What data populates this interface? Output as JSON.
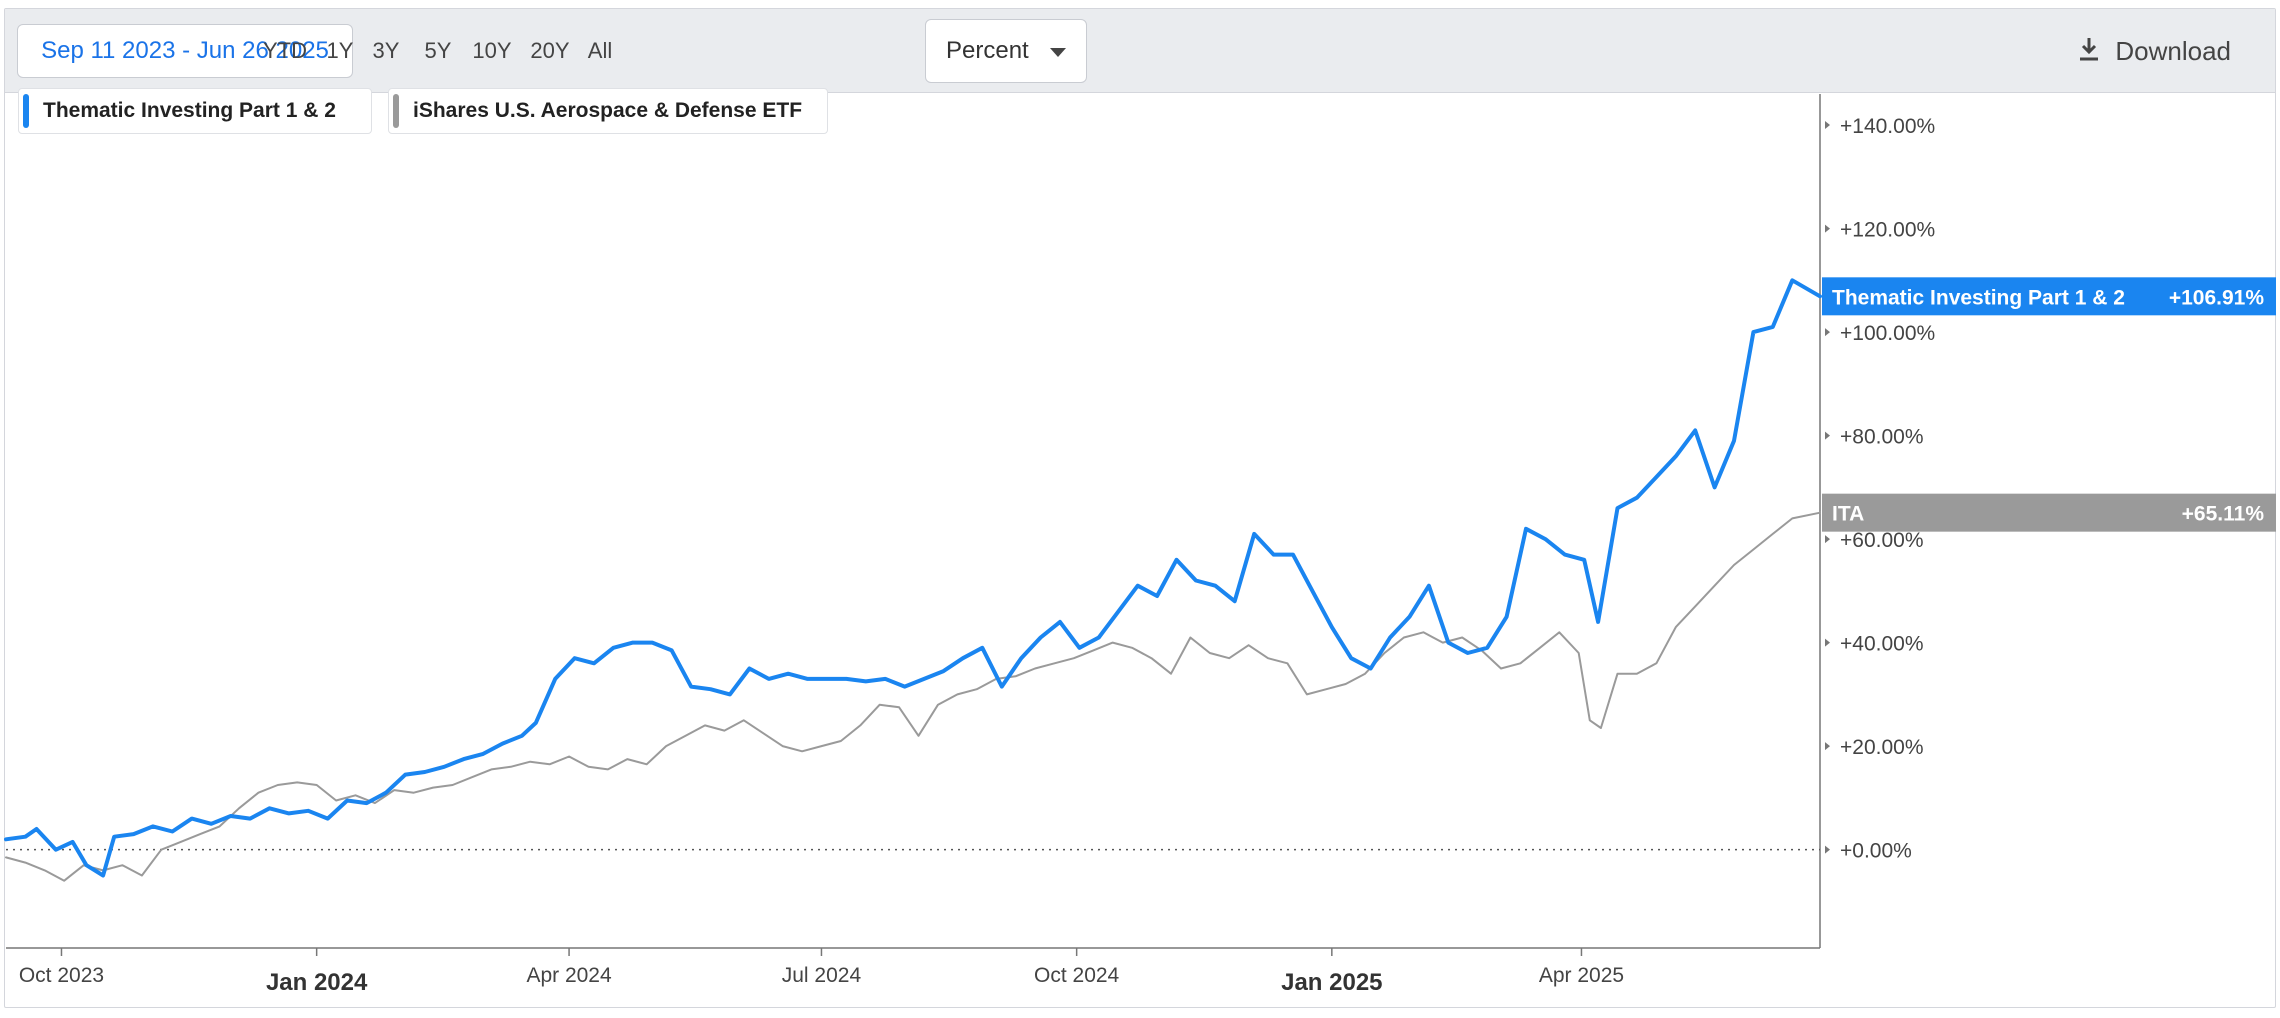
{
  "toolbar": {
    "date_range": "Sep 11 2023 - Jun 26 2025",
    "ranges": [
      "YTD",
      "1Y",
      "3Y",
      "5Y",
      "10Y",
      "20Y",
      "All"
    ],
    "mode": "Percent",
    "download": "Download"
  },
  "colors": {
    "series1": "#1a85f0",
    "series2": "#9a9a9a",
    "accent_text": "#1a73e8"
  },
  "icons": {
    "caret": "caret-down-icon",
    "download": "download-icon"
  },
  "chart_data": {
    "type": "line",
    "x_axis": {
      "range": [
        "2023-09-11",
        "2025-06-26"
      ],
      "ticks": [
        {
          "date": "2023-10-01",
          "label": "Oct 2023",
          "major": false
        },
        {
          "date": "2024-01-01",
          "label": "Jan 2024",
          "major": true
        },
        {
          "date": "2024-04-01",
          "label": "Apr 2024",
          "major": false
        },
        {
          "date": "2024-07-01",
          "label": "Jul 2024",
          "major": false
        },
        {
          "date": "2024-10-01",
          "label": "Oct 2024",
          "major": false
        },
        {
          "date": "2025-01-01",
          "label": "Jan 2025",
          "major": true
        },
        {
          "date": "2025-04-01",
          "label": "Apr 2025",
          "major": false
        }
      ]
    },
    "y_axis": {
      "range": [
        -19,
        146
      ],
      "ticks": [
        0,
        20,
        40,
        60,
        80,
        100,
        120,
        140
      ],
      "tick_labels": [
        "+0.00%",
        "+20.00%",
        "+40.00%",
        "+60.00%",
        "+80.00%",
        "+100.00%",
        "+120.00%",
        "+140.00%"
      ],
      "position": "right",
      "zero_line": "dotted"
    },
    "legend_position": "top-left",
    "series": [
      {
        "name": "Thematic Investing Part 1 & 2",
        "end_label": "Thematic Investing Part 1 & 2",
        "end_value_label": "+106.91%",
        "end_value": 106.91,
        "points": [
          [
            "2023-09-11",
            2
          ],
          [
            "2023-09-18",
            2.5
          ],
          [
            "2023-09-22",
            4
          ],
          [
            "2023-09-29",
            0
          ],
          [
            "2023-10-05",
            1.5
          ],
          [
            "2023-10-10",
            -3
          ],
          [
            "2023-10-16",
            -5
          ],
          [
            "2023-10-20",
            2.5
          ],
          [
            "2023-10-27",
            3
          ],
          [
            "2023-11-03",
            4.5
          ],
          [
            "2023-11-10",
            3.5
          ],
          [
            "2023-11-17",
            6
          ],
          [
            "2023-11-24",
            5
          ],
          [
            "2023-12-01",
            6.5
          ],
          [
            "2023-12-08",
            6
          ],
          [
            "2023-12-15",
            8
          ],
          [
            "2023-12-22",
            7
          ],
          [
            "2023-12-29",
            7.5
          ],
          [
            "2024-01-05",
            6
          ],
          [
            "2024-01-12",
            9.5
          ],
          [
            "2024-01-19",
            9
          ],
          [
            "2024-01-26",
            11
          ],
          [
            "2024-02-02",
            14.5
          ],
          [
            "2024-02-09",
            15
          ],
          [
            "2024-02-16",
            16
          ],
          [
            "2024-02-23",
            17.5
          ],
          [
            "2024-03-01",
            18.5
          ],
          [
            "2024-03-08",
            20.5
          ],
          [
            "2024-03-15",
            22
          ],
          [
            "2024-03-20",
            24.5
          ],
          [
            "2024-03-27",
            33
          ],
          [
            "2024-04-03",
            37
          ],
          [
            "2024-04-10",
            36
          ],
          [
            "2024-04-17",
            39
          ],
          [
            "2024-04-24",
            40
          ],
          [
            "2024-05-01",
            40
          ],
          [
            "2024-05-08",
            38.5
          ],
          [
            "2024-05-15",
            31.5
          ],
          [
            "2024-05-22",
            31
          ],
          [
            "2024-05-29",
            30
          ],
          [
            "2024-06-05",
            35
          ],
          [
            "2024-06-12",
            33
          ],
          [
            "2024-06-19",
            34
          ],
          [
            "2024-06-26",
            33
          ],
          [
            "2024-07-03",
            33
          ],
          [
            "2024-07-10",
            33
          ],
          [
            "2024-07-17",
            32.5
          ],
          [
            "2024-07-24",
            33
          ],
          [
            "2024-07-31",
            31.5
          ],
          [
            "2024-08-07",
            33
          ],
          [
            "2024-08-14",
            34.5
          ],
          [
            "2024-08-21",
            37
          ],
          [
            "2024-08-28",
            39
          ],
          [
            "2024-09-04",
            31.5
          ],
          [
            "2024-09-11",
            37
          ],
          [
            "2024-09-18",
            41
          ],
          [
            "2024-09-25",
            44
          ],
          [
            "2024-10-02",
            39
          ],
          [
            "2024-10-09",
            41
          ],
          [
            "2024-10-16",
            46
          ],
          [
            "2024-10-23",
            51
          ],
          [
            "2024-10-30",
            49
          ],
          [
            "2024-11-06",
            56
          ],
          [
            "2024-11-13",
            52
          ],
          [
            "2024-11-20",
            51
          ],
          [
            "2024-11-27",
            48
          ],
          [
            "2024-12-04",
            61
          ],
          [
            "2024-12-11",
            57
          ],
          [
            "2024-12-18",
            57
          ],
          [
            "2024-12-25",
            50
          ],
          [
            "2025-01-01",
            43
          ],
          [
            "2025-01-08",
            37
          ],
          [
            "2025-01-15",
            35
          ],
          [
            "2025-01-22",
            41
          ],
          [
            "2025-01-29",
            45
          ],
          [
            "2025-02-05",
            51
          ],
          [
            "2025-02-12",
            40
          ],
          [
            "2025-02-19",
            38
          ],
          [
            "2025-02-26",
            39
          ],
          [
            "2025-03-05",
            45
          ],
          [
            "2025-03-12",
            62
          ],
          [
            "2025-03-19",
            60
          ],
          [
            "2025-03-26",
            57
          ],
          [
            "2025-04-02",
            56
          ],
          [
            "2025-04-07",
            44
          ],
          [
            "2025-04-14",
            66
          ],
          [
            "2025-04-21",
            68
          ],
          [
            "2025-04-28",
            72
          ],
          [
            "2025-05-05",
            76
          ],
          [
            "2025-05-12",
            81
          ],
          [
            "2025-05-19",
            70
          ],
          [
            "2025-05-26",
            79
          ],
          [
            "2025-06-02",
            100
          ],
          [
            "2025-06-09",
            101
          ],
          [
            "2025-06-16",
            110
          ],
          [
            "2025-06-26",
            106.91
          ]
        ]
      },
      {
        "name": "iShares U.S. Aerospace & Defense ETF",
        "end_label": "ITA",
        "end_value_label": "+65.11%",
        "end_value": 65.11,
        "points": [
          [
            "2023-09-11",
            -1.5
          ],
          [
            "2023-09-18",
            -2.5
          ],
          [
            "2023-09-25",
            -4
          ],
          [
            "2023-10-02",
            -6
          ],
          [
            "2023-10-09",
            -3
          ],
          [
            "2023-10-16",
            -4
          ],
          [
            "2023-10-23",
            -3
          ],
          [
            "2023-10-30",
            -5
          ],
          [
            "2023-11-06",
            0
          ],
          [
            "2023-11-13",
            1.5
          ],
          [
            "2023-11-20",
            3
          ],
          [
            "2023-11-27",
            4.5
          ],
          [
            "2023-12-04",
            8
          ],
          [
            "2023-12-11",
            11
          ],
          [
            "2023-12-18",
            12.5
          ],
          [
            "2023-12-25",
            13
          ],
          [
            "2024-01-01",
            12.5
          ],
          [
            "2024-01-08",
            9.5
          ],
          [
            "2024-01-15",
            10.5
          ],
          [
            "2024-01-22",
            9
          ],
          [
            "2024-01-29",
            11.5
          ],
          [
            "2024-02-05",
            11
          ],
          [
            "2024-02-12",
            12
          ],
          [
            "2024-02-19",
            12.5
          ],
          [
            "2024-02-26",
            14
          ],
          [
            "2024-03-04",
            15.5
          ],
          [
            "2024-03-11",
            16
          ],
          [
            "2024-03-18",
            17
          ],
          [
            "2024-03-25",
            16.5
          ],
          [
            "2024-04-01",
            18
          ],
          [
            "2024-04-08",
            16
          ],
          [
            "2024-04-15",
            15.5
          ],
          [
            "2024-04-22",
            17.5
          ],
          [
            "2024-04-29",
            16.5
          ],
          [
            "2024-05-06",
            20
          ],
          [
            "2024-05-13",
            22
          ],
          [
            "2024-05-20",
            24
          ],
          [
            "2024-05-27",
            23
          ],
          [
            "2024-06-03",
            25
          ],
          [
            "2024-06-10",
            22.5
          ],
          [
            "2024-06-17",
            20
          ],
          [
            "2024-06-24",
            19
          ],
          [
            "2024-07-01",
            20
          ],
          [
            "2024-07-08",
            21
          ],
          [
            "2024-07-15",
            24
          ],
          [
            "2024-07-22",
            28
          ],
          [
            "2024-07-29",
            27.5
          ],
          [
            "2024-08-05",
            22
          ],
          [
            "2024-08-12",
            28
          ],
          [
            "2024-08-19",
            30
          ],
          [
            "2024-08-26",
            31
          ],
          [
            "2024-09-02",
            33
          ],
          [
            "2024-09-09",
            33.5
          ],
          [
            "2024-09-16",
            35
          ],
          [
            "2024-09-23",
            36
          ],
          [
            "2024-09-30",
            37
          ],
          [
            "2024-10-07",
            38.5
          ],
          [
            "2024-10-14",
            40
          ],
          [
            "2024-10-21",
            39
          ],
          [
            "2024-10-28",
            37
          ],
          [
            "2024-11-04",
            34
          ],
          [
            "2024-11-11",
            41
          ],
          [
            "2024-11-18",
            38
          ],
          [
            "2024-11-25",
            37
          ],
          [
            "2024-12-02",
            39.5
          ],
          [
            "2024-12-09",
            37
          ],
          [
            "2024-12-16",
            36
          ],
          [
            "2024-12-23",
            30
          ],
          [
            "2024-12-30",
            31
          ],
          [
            "2025-01-06",
            32
          ],
          [
            "2025-01-13",
            34
          ],
          [
            "2025-01-20",
            38
          ],
          [
            "2025-01-27",
            41
          ],
          [
            "2025-02-03",
            42
          ],
          [
            "2025-02-10",
            40
          ],
          [
            "2025-02-17",
            41
          ],
          [
            "2025-02-24",
            38.5
          ],
          [
            "2025-03-03",
            35
          ],
          [
            "2025-03-10",
            36
          ],
          [
            "2025-03-17",
            39
          ],
          [
            "2025-03-24",
            42
          ],
          [
            "2025-03-31",
            38
          ],
          [
            "2025-04-04",
            25
          ],
          [
            "2025-04-08",
            23.5
          ],
          [
            "2025-04-14",
            34
          ],
          [
            "2025-04-21",
            34
          ],
          [
            "2025-04-28",
            36
          ],
          [
            "2025-05-05",
            43
          ],
          [
            "2025-05-12",
            47
          ],
          [
            "2025-05-19",
            51
          ],
          [
            "2025-05-26",
            55
          ],
          [
            "2025-06-02",
            58
          ],
          [
            "2025-06-09",
            61
          ],
          [
            "2025-06-16",
            64
          ],
          [
            "2025-06-26",
            65.11
          ]
        ]
      }
    ]
  }
}
